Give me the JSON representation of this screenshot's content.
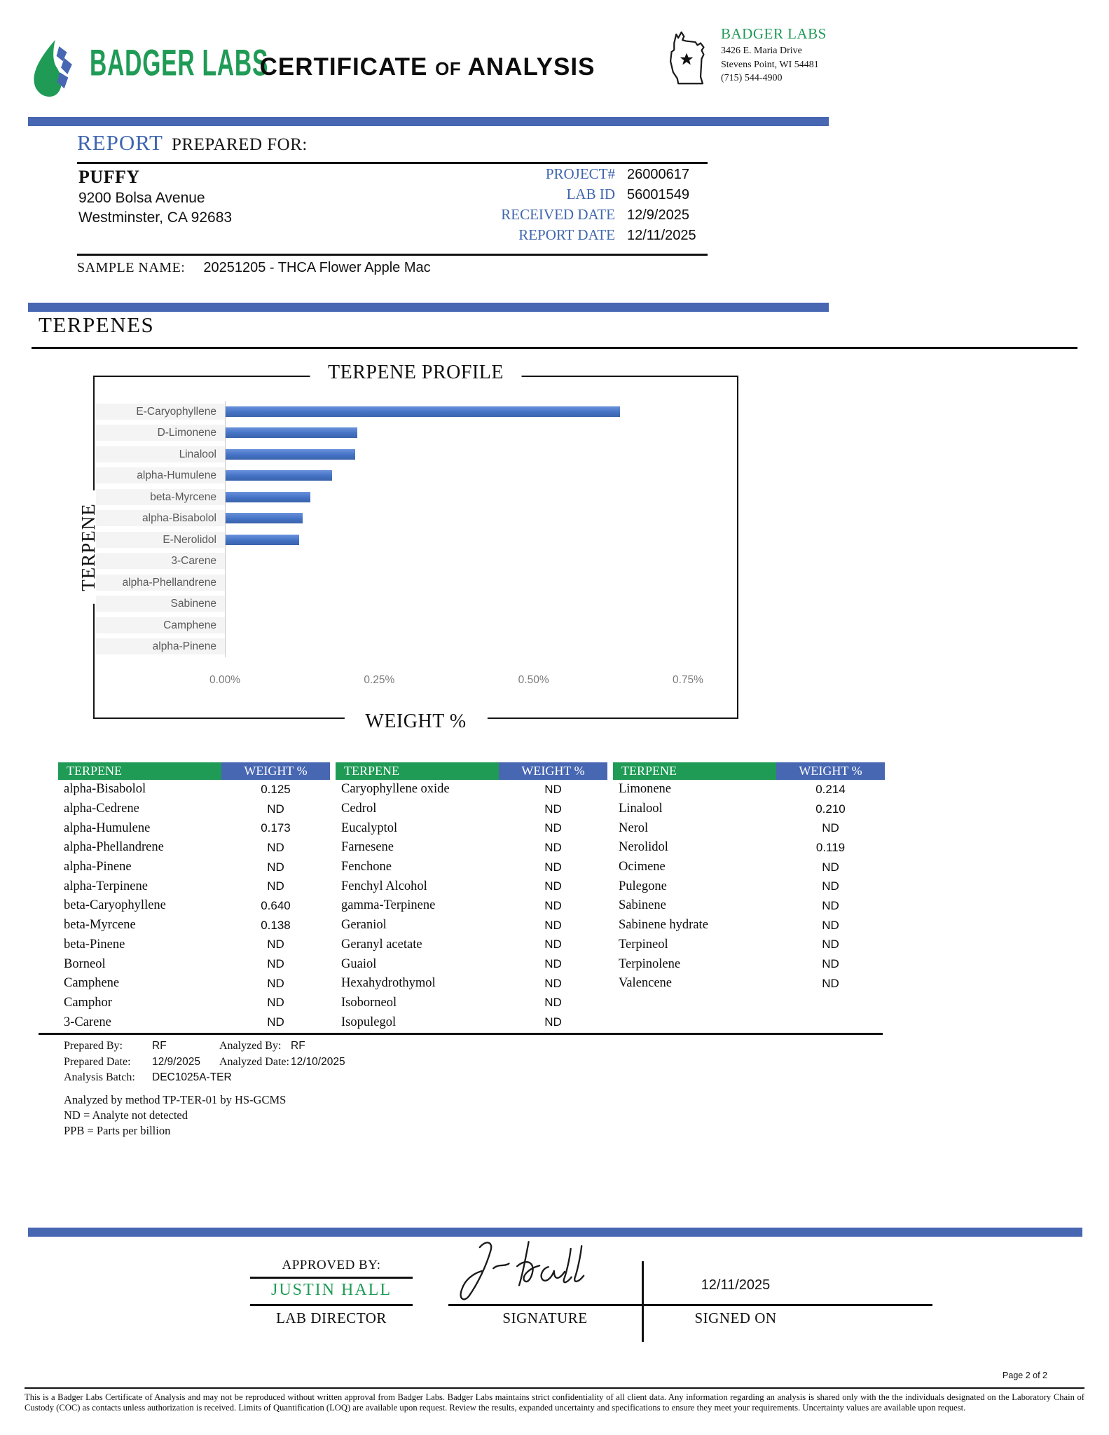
{
  "colors": {
    "accent_blue": "#4867b3",
    "brand_green": "#1f9b55",
    "chart_bar_blue": "#4472c4"
  },
  "header": {
    "brand": "BADGER LABS",
    "title_part1": "CERTIFICATE",
    "title_part2": "of",
    "title_part3": "ANALYSIS",
    "lab_name": "BADGER LABS",
    "address_line1": "3426 E. Maria Drive",
    "address_line2": "Stevens Point, WI 54481",
    "phone": "(715) 544-4900"
  },
  "report": {
    "section_label_blue": "REPORT",
    "section_label_rest": "PREPARED FOR:",
    "client_name": "PUFFY",
    "client_address1": "9200 Bolsa Avenue",
    "client_address2": "Westminster, CA 92683",
    "fields": [
      {
        "label": "PROJECT#",
        "value": "26000617"
      },
      {
        "label": "LAB ID",
        "value": "56001549"
      },
      {
        "label": "RECEIVED DATE",
        "value": "12/9/2025"
      },
      {
        "label": "REPORT DATE",
        "value": "12/11/2025"
      }
    ],
    "sample_label": "SAMPLE NAME:",
    "sample_value": "20251205 - THCA Flower Apple Mac"
  },
  "section_title": "TERPENES",
  "chart_data": {
    "type": "bar",
    "orientation": "horizontal",
    "title": "TERPENE PROFILE",
    "xlabel": "WEIGHT %",
    "ylabel": "TERPENE",
    "categories": [
      "E-Caryophyllene",
      "D-Limonene",
      "Linalool",
      "alpha-Humulene",
      "beta-Myrcene",
      "alpha-Bisabolol",
      "E-Nerolidol",
      "3-Carene",
      "alpha-Phellandrene",
      "Sabinene",
      "Camphene",
      "alpha-Pinene"
    ],
    "values": [
      0.64,
      0.214,
      0.21,
      0.173,
      0.138,
      0.125,
      0.119,
      0,
      0,
      0,
      0,
      0
    ],
    "xticks": [
      "0.00%",
      "0.25%",
      "0.50%",
      "0.75%"
    ],
    "xtick_values": [
      0,
      0.25,
      0.5,
      0.75
    ],
    "x_max_pct": 0.8136,
    "grid": false,
    "legend": false,
    "bar_color": "#4472c4"
  },
  "table": {
    "groups": [
      {
        "headers": [
          "TERPENE",
          "WEIGHT %"
        ],
        "rows": [
          [
            "alpha-Bisabolol",
            "0.125"
          ],
          [
            "alpha-Cedrene",
            "ND"
          ],
          [
            "alpha-Humulene",
            "0.173"
          ],
          [
            "alpha-Phellandrene",
            "ND"
          ],
          [
            "alpha-Pinene",
            "ND"
          ],
          [
            "alpha-Terpinene",
            "ND"
          ],
          [
            "beta-Caryophyllene",
            "0.640"
          ],
          [
            "beta-Myrcene",
            "0.138"
          ],
          [
            "beta-Pinene",
            "ND"
          ],
          [
            "Borneol",
            "ND"
          ],
          [
            "Camphene",
            "ND"
          ],
          [
            "Camphor",
            "ND"
          ],
          [
            "3-Carene",
            "ND"
          ]
        ]
      },
      {
        "headers": [
          "TERPENE",
          "WEIGHT %"
        ],
        "rows": [
          [
            "Caryophyllene oxide",
            "ND"
          ],
          [
            "Cedrol",
            "ND"
          ],
          [
            "Eucalyptol",
            "ND"
          ],
          [
            "Farnesene",
            "ND"
          ],
          [
            "Fenchone",
            "ND"
          ],
          [
            "Fenchyl Alcohol",
            "ND"
          ],
          [
            "gamma-Terpinene",
            "ND"
          ],
          [
            "Geraniol",
            "ND"
          ],
          [
            "Geranyl acetate",
            "ND"
          ],
          [
            "Guaiol",
            "ND"
          ],
          [
            "Hexahydrothymol",
            "ND"
          ],
          [
            "Isoborneol",
            "ND"
          ],
          [
            "Isopulegol",
            "ND"
          ]
        ]
      },
      {
        "headers": [
          "TERPENE",
          "WEIGHT %"
        ],
        "rows": [
          [
            "Limonene",
            "0.214"
          ],
          [
            "Linalool",
            "0.210"
          ],
          [
            "Nerol",
            "ND"
          ],
          [
            "Nerolidol",
            "0.119"
          ],
          [
            "Ocimene",
            "ND"
          ],
          [
            "Pulegone",
            "ND"
          ],
          [
            "Sabinene",
            "ND"
          ],
          [
            "Sabinene hydrate",
            "ND"
          ],
          [
            "Terpineol",
            "ND"
          ],
          [
            "Terpinolene",
            "ND"
          ],
          [
            "Valencene",
            "ND"
          ]
        ]
      }
    ]
  },
  "notes": {
    "pairs": [
      {
        "l1": "Prepared By:",
        "v1": "RF",
        "l2": "Analyzed By:",
        "v2": "RF"
      },
      {
        "l1": "Prepared Date:",
        "v1": "12/9/2025",
        "l2": "Analyzed Date:",
        "v2": "12/10/2025"
      },
      {
        "l1": "Analysis Batch:",
        "v1": "DEC1025A-TER",
        "l2": "",
        "v2": ""
      }
    ],
    "lines": [
      "Analyzed by method TP-TER-01 by HS-GCMS",
      "ND = Analyte not detected",
      "PPB = Parts per billion"
    ]
  },
  "approval": {
    "approved_by_label": "APPROVED BY:",
    "name": "JUSTIN HALL",
    "role": "LAB DIRECTOR",
    "signature_label": "SIGNATURE",
    "signed_on_label": "SIGNED ON",
    "signed_date": "12/11/2025"
  },
  "footer": {
    "page_label": "Page 2 of 2",
    "disclaimer": "This is a Badger Labs Certificate of Analysis and may not be reproduced without written approval from Badger Labs. Badger Labs maintains strict confidentiality of all client data. Any information regarding an analysis is shared only with the the individuals designated on the Laboratory Chain of Custody (COC) as contacts unless authorization is received. Limits of Quantification (LOQ) are available upon request. Review the results, expanded uncertainty and specifications to ensure they meet your requirements. Uncertainty values are available upon request."
  }
}
